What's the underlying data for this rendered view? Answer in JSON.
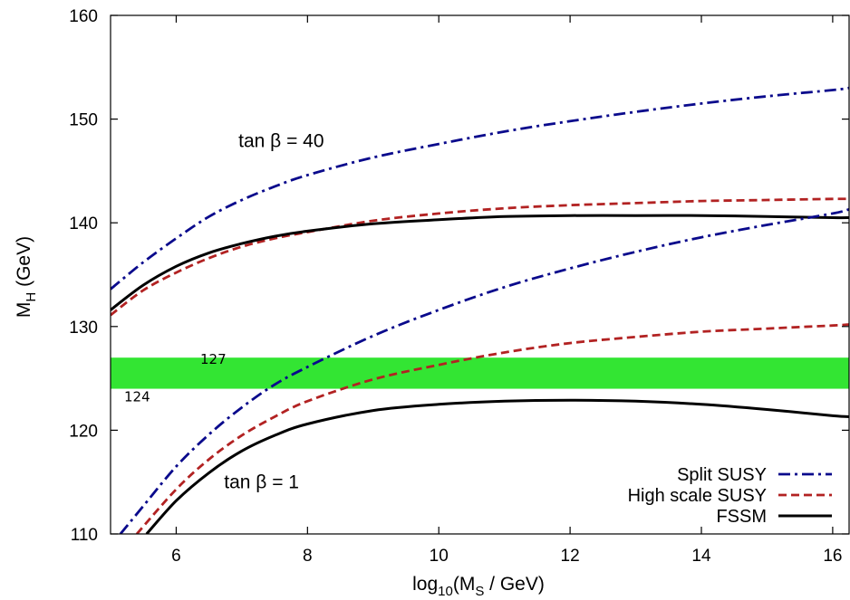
{
  "chart_data": {
    "type": "line",
    "xlabel": "log10(MS / GeV)",
    "ylabel": "MH (GeV)",
    "xlim": [
      5,
      16.25
    ],
    "ylim": [
      110,
      160
    ],
    "xticks": [
      6,
      8,
      10,
      12,
      14,
      16
    ],
    "yticks": [
      110,
      120,
      130,
      140,
      150,
      160
    ],
    "grid": false,
    "legend_position": "bottom-right",
    "band": {
      "low": 124,
      "high": 127,
      "color": "#33e533",
      "low_label": "124",
      "high_label": "127"
    },
    "annotations": [
      {
        "text": "tan β = 40",
        "x": 7.6,
        "y": 147.3
      },
      {
        "text": "tan β = 1",
        "x": 7.3,
        "y": 114.4
      }
    ],
    "series": [
      {
        "name": "Split SUSY",
        "group": "tan β = 40",
        "style": "dashdot",
        "color": "#0a0a8c",
        "x": [
          5,
          5.5,
          6,
          6.5,
          7,
          7.5,
          8,
          9,
          10,
          11,
          12,
          13,
          14,
          15,
          16,
          16.25
        ],
        "y": [
          133.6,
          136.2,
          138.5,
          140.6,
          142.2,
          143.5,
          144.6,
          146.3,
          147.6,
          148.8,
          149.8,
          150.7,
          151.5,
          152.2,
          152.8,
          153.0
        ]
      },
      {
        "name": "High scale SUSY",
        "group": "tan β = 40",
        "style": "dashed",
        "color": "#b22222",
        "x": [
          5,
          5.5,
          6,
          6.5,
          7,
          7.5,
          8,
          9,
          10,
          11,
          12,
          13,
          14,
          15,
          16,
          16.25
        ],
        "y": [
          131.1,
          133.5,
          135.2,
          136.6,
          137.7,
          138.5,
          139.1,
          140.2,
          140.9,
          141.4,
          141.7,
          141.9,
          142.1,
          142.2,
          142.3,
          142.3
        ]
      },
      {
        "name": "FSSM",
        "group": "tan β = 40",
        "style": "solid",
        "color": "#000000",
        "x": [
          5,
          5.5,
          6,
          6.5,
          7,
          7.5,
          8,
          9,
          10,
          11,
          12,
          13,
          14,
          15,
          16,
          16.25
        ],
        "y": [
          131.6,
          134.0,
          135.8,
          137.1,
          138.0,
          138.7,
          139.2,
          139.9,
          140.3,
          140.6,
          140.7,
          140.7,
          140.7,
          140.6,
          140.5,
          140.5
        ]
      },
      {
        "name": "Split SUSY",
        "group": "tan β = 1",
        "style": "dashdot",
        "color": "#0a0a8c",
        "x": [
          5.15,
          5.5,
          6,
          6.5,
          7,
          7.5,
          8,
          9,
          10,
          11,
          12,
          13,
          14,
          15,
          16,
          16.25
        ],
        "y": [
          110,
          112.7,
          116.5,
          119.6,
          122.2,
          124.4,
          126.1,
          129.1,
          131.6,
          133.8,
          135.6,
          137.2,
          138.6,
          139.8,
          140.9,
          141.3
        ]
      },
      {
        "name": "High scale SUSY",
        "group": "tan β = 1",
        "style": "dashed",
        "color": "#b22222",
        "x": [
          5.4,
          6,
          6.5,
          7,
          7.5,
          8,
          9,
          10,
          11,
          12,
          13,
          14,
          15,
          16,
          16.25
        ],
        "y": [
          110,
          114.3,
          117.2,
          119.5,
          121.3,
          122.8,
          124.9,
          126.3,
          127.5,
          128.4,
          129.0,
          129.5,
          129.8,
          130.1,
          130.2
        ]
      },
      {
        "name": "FSSM",
        "group": "tan β = 1",
        "style": "solid",
        "color": "#000000",
        "x": [
          5.55,
          6,
          6.5,
          7,
          7.5,
          8,
          9,
          10,
          11,
          12,
          13,
          14,
          15,
          16,
          16.25
        ],
        "y": [
          110,
          113.2,
          115.9,
          118.0,
          119.5,
          120.6,
          121.9,
          122.5,
          122.8,
          122.9,
          122.8,
          122.5,
          122.0,
          121.4,
          121.3
        ]
      }
    ],
    "legend": [
      {
        "label": "Split SUSY",
        "style": "dashdot",
        "color": "#0a0a8c"
      },
      {
        "label": "High scale SUSY",
        "style": "dashed",
        "color": "#b22222"
      },
      {
        "label": "FSSM",
        "style": "solid",
        "color": "#000000"
      }
    ]
  }
}
